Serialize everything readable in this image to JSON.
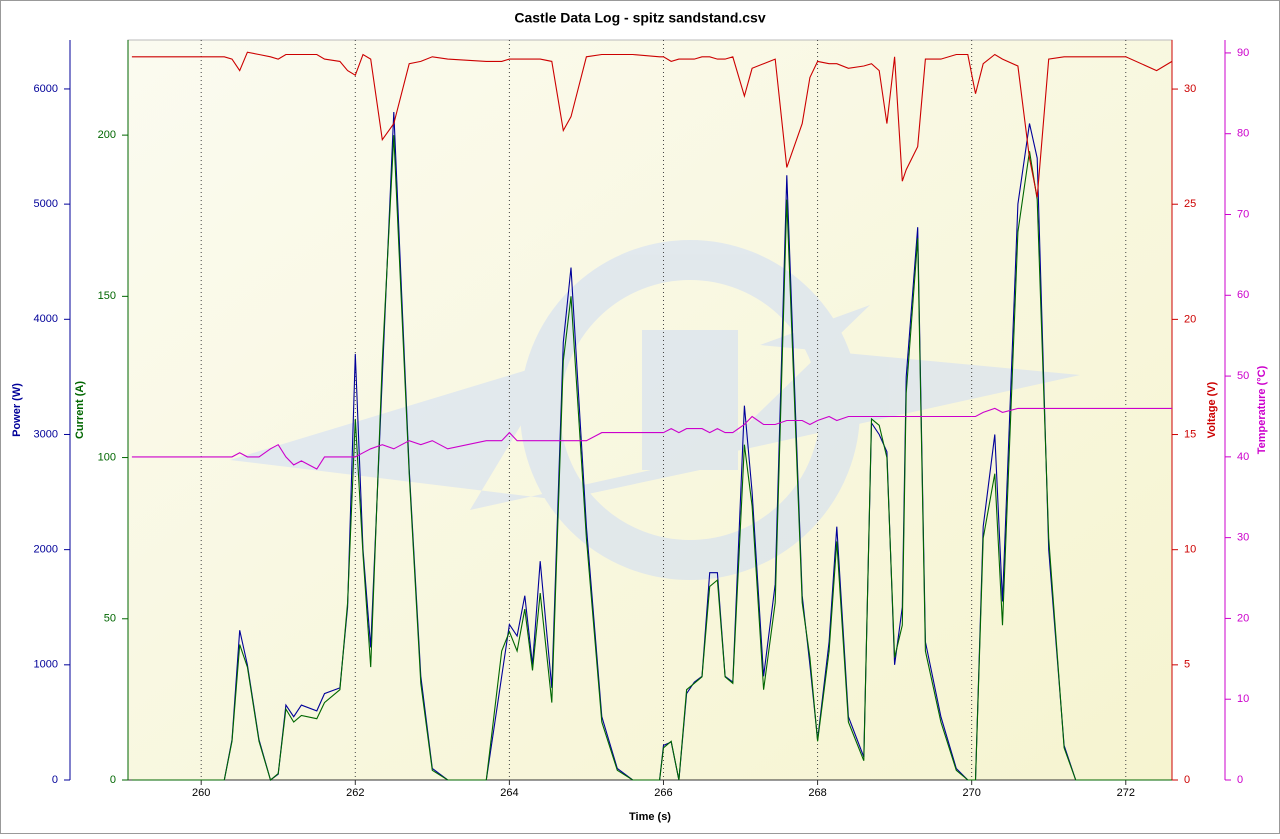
{
  "chart_data": {
    "type": "line",
    "title": "Castle Data Log - spitz sandstand.csv",
    "x_label": "Time (s)",
    "xlim": [
      259.05,
      272.6
    ],
    "xticks": [
      260,
      262,
      264,
      266,
      268,
      270,
      272
    ],
    "grid": true,
    "x": [
      259.1,
      260.3,
      260.4,
      260.5,
      260.6,
      260.75,
      260.9,
      261.0,
      261.1,
      261.2,
      261.3,
      261.5,
      261.6,
      261.8,
      261.9,
      262.0,
      262.1,
      262.2,
      262.35,
      262.5,
      262.7,
      262.85,
      263.0,
      263.2,
      263.7,
      263.9,
      264.0,
      264.1,
      264.2,
      264.3,
      264.4,
      264.55,
      264.7,
      264.8,
      265.0,
      265.2,
      265.4,
      265.6,
      265.95,
      266.0,
      266.1,
      266.2,
      266.3,
      266.4,
      266.5,
      266.6,
      266.7,
      266.8,
      266.9,
      267.05,
      267.15,
      267.3,
      267.45,
      267.6,
      267.8,
      267.9,
      268.0,
      268.15,
      268.25,
      268.4,
      268.6,
      268.7,
      268.8,
      268.9,
      269.0,
      269.1,
      269.15,
      269.3,
      269.4,
      269.6,
      269.8,
      269.95,
      270.05,
      270.15,
      270.3,
      270.4,
      270.6,
      270.75,
      270.85,
      271.0,
      271.2,
      271.35,
      272.0,
      272.4,
      272.6
    ],
    "ylim": [
      0,
      6425
    ],
    "yticks": [
      0,
      1000,
      2000,
      3000,
      4000,
      5000,
      6000
    ],
    "y2lim": [
      0,
      229.5
    ],
    "y2ticks": [
      0,
      50,
      100,
      150,
      200
    ],
    "y3lim": [
      0,
      32.13
    ],
    "y3ticks": [
      0,
      5,
      10,
      15,
      20,
      25,
      30
    ],
    "y4lim": [
      0,
      91.6
    ],
    "y4ticks": [
      0,
      10,
      20,
      30,
      40,
      50,
      60,
      70,
      80,
      90
    ],
    "series": [
      {
        "name": "Power (W)",
        "color": "#000099",
        "axis": "y",
        "values": [
          0,
          0,
          350,
          1300,
          1000,
          350,
          0,
          50,
          650,
          550,
          650,
          600,
          750,
          800,
          1500,
          3700,
          2000,
          1150,
          3500,
          5800,
          2700,
          900,
          100,
          0,
          0,
          900,
          1350,
          1250,
          1600,
          1000,
          1900,
          800,
          3800,
          4450,
          2200,
          550,
          100,
          0,
          0,
          300,
          330,
          0,
          750,
          850,
          900,
          1800,
          1800,
          900,
          850,
          3250,
          2500,
          900,
          1700,
          5250,
          1600,
          1000,
          350,
          1200,
          2200,
          550,
          200,
          3100,
          3000,
          2850,
          1000,
          1500,
          3500,
          4800,
          1200,
          550,
          100,
          0,
          0,
          2200,
          3000,
          1550,
          5000,
          5700,
          5400,
          2000,
          300,
          0,
          0,
          0,
          0
        ]
      },
      {
        "name": "Current (A)",
        "color": "#006600",
        "axis": "y2",
        "values": [
          0,
          0,
          12,
          42,
          35,
          12,
          0,
          2,
          22,
          18,
          20,
          19,
          24,
          28,
          55,
          112,
          70,
          35,
          130,
          200,
          95,
          30,
          3,
          0,
          0,
          40,
          46,
          40,
          53,
          34,
          58,
          24,
          130,
          150,
          75,
          18,
          3,
          0,
          0,
          10,
          12,
          0,
          28,
          30,
          32,
          60,
          62,
          32,
          30,
          104,
          85,
          28,
          55,
          180,
          55,
          38,
          12,
          40,
          74,
          18,
          6,
          112,
          110,
          100,
          38,
          48,
          120,
          168,
          40,
          18,
          3,
          0,
          0,
          75,
          95,
          48,
          170,
          195,
          180,
          75,
          10,
          0,
          0,
          0,
          0
        ]
      },
      {
        "name": "Voltage (V)",
        "color": "#cc0000",
        "axis": "y3",
        "values": [
          31.4,
          31.4,
          31.3,
          30.8,
          31.6,
          31.5,
          31.4,
          31.3,
          31.5,
          31.5,
          31.5,
          31.5,
          31.3,
          31.2,
          30.8,
          30.6,
          31.5,
          31.3,
          27.8,
          28.5,
          31.1,
          31.2,
          31.4,
          31.3,
          31.2,
          31.2,
          31.3,
          31.3,
          31.3,
          31.3,
          31.3,
          31.2,
          28.2,
          28.8,
          31.4,
          31.5,
          31.5,
          31.5,
          31.4,
          31.4,
          31.2,
          31.3,
          31.3,
          31.3,
          31.4,
          31.4,
          31.3,
          31.3,
          31.4,
          29.7,
          30.9,
          31.1,
          31.3,
          26.6,
          28.5,
          30.5,
          31.2,
          31.1,
          31.1,
          30.9,
          31,
          31.1,
          30.8,
          28.5,
          31.4,
          26,
          26.5,
          27.5,
          31.3,
          31.3,
          31.5,
          31.5,
          29.8,
          31.1,
          31.5,
          31.3,
          31,
          27,
          25.3,
          31.3,
          31.4,
          31.4,
          31.4,
          30.8,
          31.2
        ]
      },
      {
        "name": "Temperature (°C)",
        "color": "#cc00cc",
        "axis": "y4",
        "values": [
          40,
          40,
          40,
          40.5,
          40,
          40,
          41,
          41.5,
          40,
          39,
          39.5,
          38.5,
          40,
          40,
          40,
          40,
          40.5,
          41,
          41.5,
          41,
          42,
          41.5,
          42,
          41,
          42,
          42,
          43,
          42,
          42,
          42,
          42,
          42,
          42,
          42,
          42,
          43,
          43,
          43,
          43,
          43,
          43.5,
          43,
          43.5,
          43.5,
          43.5,
          43,
          43.5,
          43,
          43,
          44,
          45,
          44,
          44,
          44.5,
          44.5,
          44,
          44.5,
          45,
          44.5,
          45,
          45,
          45,
          45,
          45,
          45,
          45,
          45,
          45,
          45,
          45,
          45,
          45,
          45,
          45.5,
          46,
          45.5,
          46,
          46,
          46,
          46,
          46,
          46,
          46,
          46,
          46
        ]
      }
    ]
  }
}
